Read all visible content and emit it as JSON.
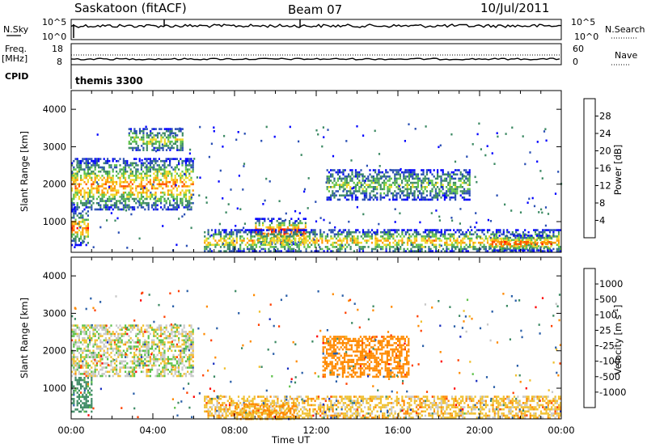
{
  "header": {
    "station": "Saskatoon (fitACF)",
    "beam": "Beam 07",
    "date": "10/Jul/2011"
  },
  "status_panels": {
    "nsky_label": "N.Sky",
    "nsky_ticks": [
      "10^5",
      "10^0"
    ],
    "nsearch_label": "N.Search",
    "nsearch_ticks": [
      "10^5",
      "10^0"
    ],
    "freq_label": "Freq.",
    "freq_unit": "[MHz]",
    "freq_ticks": [
      "18",
      "8"
    ],
    "nave_label": "Nave",
    "nave_ticks": [
      "60",
      "0"
    ],
    "cpid_label": "CPID",
    "cpid_value": "themis 3300"
  },
  "chart_data": [
    {
      "type": "heatmap",
      "name": "power",
      "ylabel": "Slant Range [km]",
      "xlabel": "",
      "xlim": [
        0,
        24
      ],
      "ylim": [
        180,
        4500
      ],
      "y_ticks": [
        "1000",
        "2000",
        "3000",
        "4000"
      ],
      "colorbar": {
        "label": "Power [dB]",
        "ticks": [
          "4",
          "8",
          "12",
          "16",
          "20",
          "24",
          "28"
        ],
        "range": [
          0,
          30
        ],
        "colors": [
          "#0000ff",
          "#2a4fb4",
          "#3d8a64",
          "#5ec24a",
          "#f0d828",
          "#ff9a00",
          "#ff5000",
          "#ff0000"
        ]
      },
      "echo_regions": [
        {
          "t": [
            0.0,
            6.0
          ],
          "range": [
            1300,
            2700
          ],
          "peak_db": 22
        },
        {
          "t": [
            0.0,
            0.8
          ],
          "range": [
            400,
            1300
          ],
          "peak_db": 24
        },
        {
          "t": [
            2.8,
            5.5
          ],
          "range": [
            2900,
            3500
          ],
          "peak_db": 16
        },
        {
          "t": [
            9.0,
            11.5
          ],
          "range": [
            400,
            1100
          ],
          "peak_db": 28
        },
        {
          "t": [
            12.5,
            19.5
          ],
          "range": [
            1600,
            2400
          ],
          "peak_db": 14
        },
        {
          "t": [
            6.5,
            24.0
          ],
          "range": [
            200,
            800
          ],
          "peak_db": 20
        },
        {
          "t": [
            20.5,
            23.5
          ],
          "range": [
            250,
            650
          ],
          "peak_db": 26
        }
      ]
    },
    {
      "type": "heatmap",
      "name": "velocity",
      "ylabel": "Slant Range [km]",
      "xlabel": "Time UT",
      "xlim": [
        0,
        24
      ],
      "ylim": [
        180,
        4500
      ],
      "x_ticks": [
        "00:00",
        "04:00",
        "08:00",
        "12:00",
        "16:00",
        "20:00",
        "00:00"
      ],
      "y_ticks": [
        "1000",
        "2000",
        "3000",
        "4000"
      ],
      "colorbar": {
        "label": "Velocity [m s^-1]",
        "ticks": [
          "1000",
          "500",
          "100",
          "25",
          "-25",
          "-100",
          "-500",
          "-1000"
        ],
        "colors": [
          "#1a2fbf",
          "#2a5fa8",
          "#3d8a64",
          "#5ec24a",
          "#c8c8c8",
          "#f0c030",
          "#ff8a00",
          "#ff4000",
          "#ff0000"
        ]
      },
      "echo_regions": [
        {
          "t": [
            0.0,
            6.0
          ],
          "range": [
            1300,
            2700
          ],
          "velocity": 0
        },
        {
          "t": [
            0.0,
            1.0
          ],
          "range": [
            400,
            1300
          ],
          "velocity": 150
        },
        {
          "t": [
            12.3,
            16.5
          ],
          "range": [
            1300,
            2400
          ],
          "velocity": -300
        },
        {
          "t": [
            6.5,
            24.0
          ],
          "range": [
            200,
            800
          ],
          "velocity": -60
        },
        {
          "t": [
            8.0,
            11.0
          ],
          "range": [
            200,
            600
          ],
          "velocity": -100
        }
      ]
    }
  ]
}
